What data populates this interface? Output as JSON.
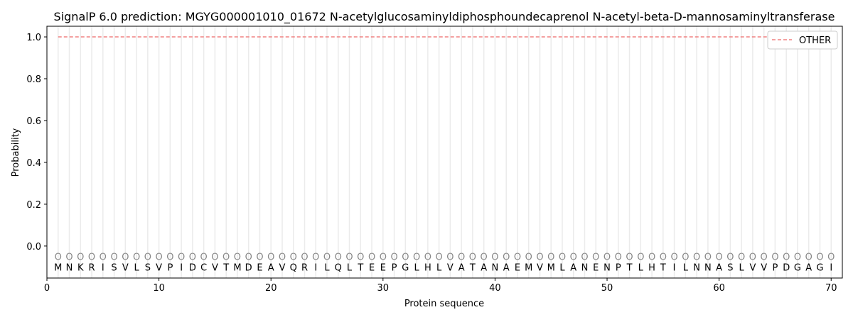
{
  "chart_data": {
    "type": "line",
    "title": "SignalP 6.0 prediction: MGYG000001010_01672 N-acetylglucosaminyldiphosphoundecaprenol N-acetyl-beta-D-mannosaminyltransferase",
    "xlabel": "Protein sequence",
    "ylabel": "Probability",
    "xlim": [
      0,
      71
    ],
    "ylim": [
      -0.153,
      1.051
    ],
    "xticks": [
      0,
      10,
      20,
      30,
      40,
      50,
      60,
      70
    ],
    "yticks": [
      "0.0",
      "0.2",
      "0.4",
      "0.6",
      "0.8",
      "1.0"
    ],
    "grid": "vertical lines at each residue",
    "legend_position": "top-right",
    "sequence": [
      "M",
      "N",
      "K",
      "R",
      "I",
      "S",
      "V",
      "L",
      "S",
      "V",
      "P",
      "I",
      "D",
      "C",
      "V",
      "T",
      "M",
      "D",
      "E",
      "A",
      "V",
      "Q",
      "R",
      "I",
      "L",
      "Q",
      "L",
      "T",
      "E",
      "E",
      "P",
      "G",
      "L",
      "H",
      "L",
      "V",
      "A",
      "T",
      "A",
      "N",
      "A",
      "E",
      "M",
      "V",
      "M",
      "L",
      "A",
      "N",
      "E",
      "N",
      "P",
      "T",
      "L",
      "H",
      "T",
      "I",
      "L",
      "N",
      "N",
      "A",
      "S",
      "L",
      "V",
      "V",
      "P",
      "D",
      "G",
      "A",
      "G",
      "I"
    ],
    "region_label": "O",
    "series": [
      {
        "name": "OTHER",
        "color": "#f08080",
        "style": "dashed",
        "x_start": 1,
        "x_end": 70,
        "value": 1.0
      }
    ]
  }
}
